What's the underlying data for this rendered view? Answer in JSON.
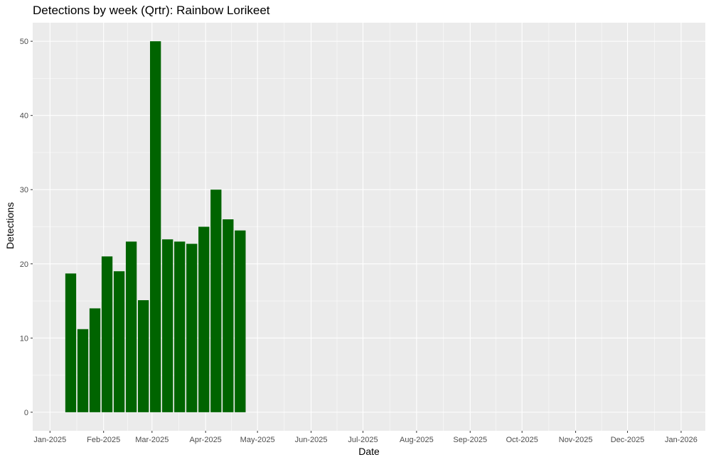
{
  "chart_data": {
    "type": "bar",
    "title": "Detections by week (Qrtr): Rainbow Lorikeet",
    "xlabel": "Date",
    "ylabel": "Detections",
    "x_axis_type": "date",
    "xlim": [
      "2024-12-22",
      "2026-01-15"
    ],
    "ylim": [
      -2.5,
      52.5
    ],
    "y_ticks": [
      0,
      10,
      20,
      30,
      40,
      50
    ],
    "x_ticks": [
      {
        "date": "2025-01-01",
        "label": "Jan-2025"
      },
      {
        "date": "2025-02-01",
        "label": "Feb-2025"
      },
      {
        "date": "2025-03-01",
        "label": "Mar-2025"
      },
      {
        "date": "2025-04-01",
        "label": "Apr-2025"
      },
      {
        "date": "2025-05-01",
        "label": "May-2025"
      },
      {
        "date": "2025-06-01",
        "label": "Jun-2025"
      },
      {
        "date": "2025-07-01",
        "label": "Jul-2025"
      },
      {
        "date": "2025-08-01",
        "label": "Aug-2025"
      },
      {
        "date": "2025-09-01",
        "label": "Sep-2025"
      },
      {
        "date": "2025-10-01",
        "label": "Oct-2025"
      },
      {
        "date": "2025-11-01",
        "label": "Nov-2025"
      },
      {
        "date": "2025-12-01",
        "label": "Dec-2025"
      },
      {
        "date": "2026-01-01",
        "label": "Jan-2026"
      }
    ],
    "bar_width_days": 6.3,
    "weeks": [
      "2025-01-13",
      "2025-01-20",
      "2025-01-27",
      "2025-02-03",
      "2025-02-10",
      "2025-02-17",
      "2025-02-24",
      "2025-03-03",
      "2025-03-10",
      "2025-03-17",
      "2025-03-24",
      "2025-03-31",
      "2025-04-07",
      "2025-04-14",
      "2025-04-21"
    ],
    "values": [
      18.7,
      11.2,
      14.0,
      21.0,
      19.0,
      23.0,
      15.1,
      50.0,
      23.3,
      23.0,
      22.7,
      25.0,
      30.0,
      26.0,
      24.5
    ],
    "bar_color": "#006400",
    "panel_background": "#ebebeb",
    "grid": true,
    "grid_color": "#ffffff",
    "legend": "none"
  }
}
